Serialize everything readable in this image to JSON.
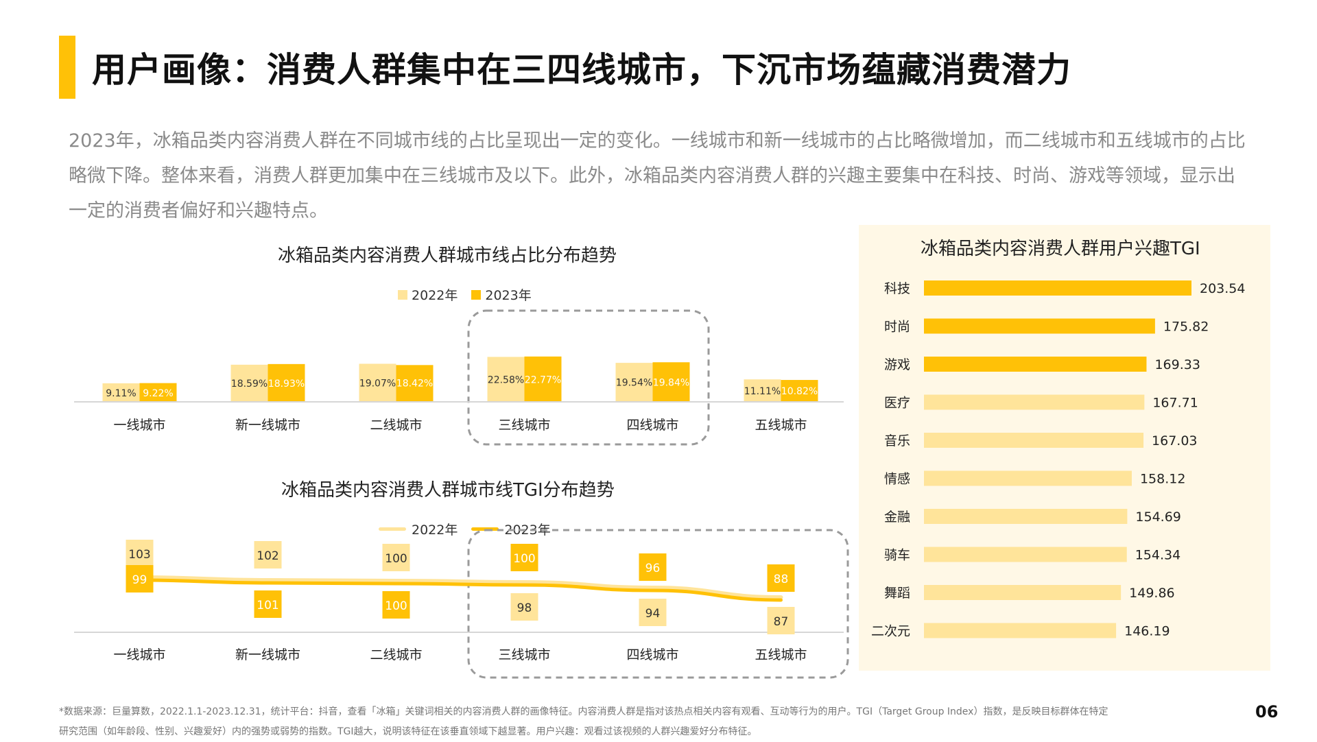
{
  "header": {
    "title": "用户画像：消费人群集中在三四线城市，下沉市场蕴藏消费潜力"
  },
  "intro_text": "2023年，冰箱品类内容消费人群在不同城市线的占比呈现出一定的变化。一线城市和新一线城市的占比略微增加，而二线城市和五线城市的占比略微下降。整体来看，消费人群更加集中在三线城市及以下。此外，冰箱品类内容消费人群的兴趣主要集中在科技、时尚、游戏等领域，显示出一定的消费者偏好和兴趣特点。",
  "colors": {
    "accent": "#FFC107",
    "light": "#FFE49A",
    "panel": "#FFF8E6"
  },
  "chart_data": [
    {
      "type": "bar",
      "title": "冰箱品类内容消费人群城市线占比分布趋势",
      "categories": [
        "一线城市",
        "新一线城市",
        "二线城市",
        "三线城市",
        "四线城市",
        "五线城市"
      ],
      "series": [
        {
          "name": "2022年",
          "values": [
            9.11,
            18.59,
            19.07,
            22.58,
            19.54,
            11.11
          ],
          "labels": [
            "9.11%",
            "18.59%",
            "19.07%",
            "22.58%",
            "19.54%",
            "11.11%"
          ]
        },
        {
          "name": "2023年",
          "values": [
            9.22,
            18.93,
            18.42,
            22.77,
            19.84,
            10.82
          ],
          "labels": [
            "9.22%",
            "18.93%",
            "18.42%",
            "22.77%",
            "19.84%",
            "10.82%"
          ]
        }
      ],
      "legend": "top",
      "highlight": [
        "三线城市",
        "四线城市"
      ]
    },
    {
      "type": "line",
      "title": "冰箱品类内容消费人群城市线TGI分布趋势",
      "categories": [
        "一线城市",
        "新一线城市",
        "二线城市",
        "三线城市",
        "四线城市",
        "五线城市"
      ],
      "series": [
        {
          "name": "2022年",
          "values": [
            103,
            102,
            100,
            98,
            94,
            87
          ]
        },
        {
          "name": "2023年",
          "values": [
            99,
            101,
            100,
            100,
            96,
            88
          ]
        }
      ],
      "legend": "top",
      "highlight": [
        "三线城市",
        "四线城市",
        "五线城市"
      ]
    },
    {
      "type": "bar",
      "orientation": "horizontal",
      "title": "冰箱品类内容消费人群用户兴趣TGI",
      "categories": [
        "科技",
        "时尚",
        "游戏",
        "医疗",
        "音乐",
        "情感",
        "金融",
        "骑车",
        "舞蹈",
        "二次元"
      ],
      "values": [
        203.54,
        175.82,
        169.33,
        167.71,
        167.03,
        158.12,
        154.69,
        154.34,
        149.86,
        146.19
      ],
      "labels": [
        "203.54",
        "175.82",
        "169.33",
        "167.71",
        "167.03",
        "158.12",
        "154.69",
        "154.34",
        "149.86",
        "146.19"
      ],
      "highlight_top": 3
    }
  ],
  "footnote": {
    "line1": "*数据来源：巨量算数，2022.1.1-2023.12.31，统计平台：抖音，查看「冰箱」关键词相关的内容消费人群的画像特征。内容消费人群是指对该热点相关内容有观看、互动等行为的用户。TGI（Target Group Index）指数，是反映目标群体在特定",
    "line2": "研究范围（如年龄段、性别、兴趣爱好）内的强势或弱势的指数。TGI越大，说明该特征在该垂直领域下越显著。用户兴趣：观看过该视频的人群兴趣爱好分布特征。"
  },
  "page_number": "06"
}
